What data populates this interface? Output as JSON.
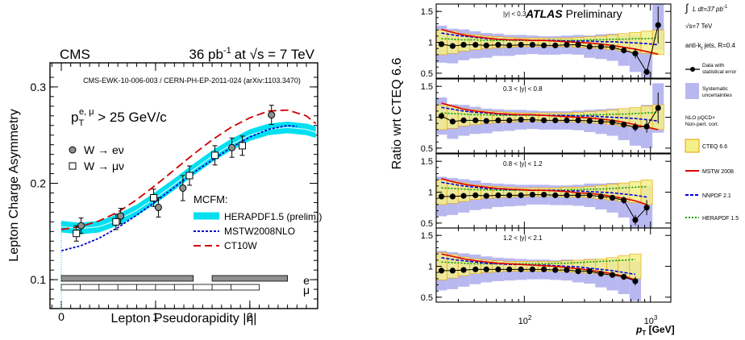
{
  "chart_data": [
    {
      "type": "line",
      "experiment": "CMS",
      "lumi_label": "36 pb",
      "lumi_sup": "-1",
      "energy_label": "at  √s = 7 TeV",
      "reference": "CMS-EWK-10-006-003 / CERN-PH-EP-2011-024 (arXiv:1103.3470)",
      "cut_main": "p",
      "cut_sub": "T",
      "cut_sup": "e, μ",
      "cut_rest": " > 25 GeV/c",
      "xlabel": "Lepton Pseudorapidity    |η|",
      "ylabel": "Lepton Charge Asymmetry",
      "xlim": [
        -0.12,
        2.72
      ],
      "ylim": [
        0.07,
        0.325
      ],
      "xticks": [
        "0",
        "1",
        "2"
      ],
      "yticks": [
        "0.1",
        "0.2",
        "0.3"
      ],
      "xtick_values": [
        0,
        1,
        2
      ],
      "ytick_values": [
        0.1,
        0.2,
        0.3
      ],
      "legend_title": "MCFM:",
      "series": [
        {
          "name": "W → eν",
          "marker": "circle",
          "color": "#909090",
          "x": [
            0.21,
            0.63,
            1.03,
            1.29,
            1.81,
            2.23
          ],
          "y": [
            0.156,
            0.166,
            0.175,
            0.195,
            0.237,
            0.271
          ],
          "err": [
            0.008,
            0.008,
            0.01,
            0.013,
            0.01,
            0.01
          ]
        },
        {
          "name": "W → μν",
          "marker": "square",
          "color": "#ffffff",
          "x": [
            0.16,
            0.58,
            0.98,
            1.36,
            1.63,
            1.92
          ],
          "y": [
            0.148,
            0.16,
            0.185,
            0.208,
            0.229,
            0.239
          ],
          "err": [
            0.008,
            0.008,
            0.009,
            0.01,
            0.01,
            0.01
          ]
        },
        {
          "name": "HERAPDF1.5 (prelim.)",
          "style": "band",
          "color": "#00e0f0",
          "x": [
            0,
            0.2,
            0.4,
            0.6,
            0.8,
            1.0,
            1.2,
            1.4,
            1.6,
            1.8,
            2.0,
            2.2,
            2.4,
            2.6,
            2.7
          ],
          "y": [
            0.155,
            0.153,
            0.155,
            0.162,
            0.172,
            0.185,
            0.199,
            0.214,
            0.228,
            0.24,
            0.25,
            0.256,
            0.258,
            0.256,
            0.253
          ],
          "halfwidth": 0.006
        },
        {
          "name": "MSTW2008NLO",
          "style": "dotted",
          "color": "#0000cc",
          "x": [
            0,
            0.2,
            0.4,
            0.6,
            0.8,
            1.0,
            1.2,
            1.4,
            1.6,
            1.8,
            2.0,
            2.2,
            2.4,
            2.5
          ],
          "y": [
            0.13,
            0.135,
            0.143,
            0.154,
            0.167,
            0.181,
            0.196,
            0.211,
            0.224,
            0.237,
            0.248,
            0.256,
            0.26,
            0.259
          ]
        },
        {
          "name": "CT10W",
          "style": "dashed",
          "color": "#d00000",
          "x": [
            0,
            0.2,
            0.4,
            0.6,
            0.8,
            1.0,
            1.2,
            1.4,
            1.6,
            1.8,
            2.0,
            2.2,
            2.4,
            2.6,
            2.7
          ],
          "y": [
            0.152,
            0.155,
            0.161,
            0.17,
            0.183,
            0.198,
            0.214,
            0.23,
            0.245,
            0.258,
            0.268,
            0.275,
            0.276,
            0.27,
            0.262
          ]
        }
      ],
      "bins": {
        "e_label": "e",
        "mu_label": "μ",
        "e_segments": [
          [
            0,
            1.4
          ],
          [
            1.6,
            2.4
          ]
        ],
        "mu_edges": [
          0,
          0.2,
          0.4,
          0.6,
          0.8,
          1.0,
          1.2,
          1.4,
          1.6,
          1.8,
          2.1
        ]
      }
    },
    {
      "type": "line",
      "experiment": "ATLAS",
      "experiment_suffix": "Preliminary",
      "ylabel": "Ratio wrt CTEQ 6.6",
      "xlabel_main": "p",
      "xlabel_sub": "T",
      "xlabel_unit": " [GeV]",
      "xscale": "log",
      "xlim": [
        20,
        1450
      ],
      "ylim": [
        0.42,
        1.62
      ],
      "xtick_labels": [
        "10",
        "10"
      ],
      "xtick_sups": [
        "2",
        "3"
      ],
      "xtick_values": [
        100,
        1000
      ],
      "yticks": [
        "0.5",
        "1",
        "1.5"
      ],
      "ytick_values": [
        0.5,
        1,
        1.5
      ],
      "legend": {
        "lumi_label": "L dt=37 pb",
        "lumi_sup": "-1",
        "energy": "√s=7 TeV",
        "jets": "anti-k",
        "jets_sub": "t",
        "jets_rest": "   jets,  R=0.4",
        "data_line1": "Data with",
        "data_line2": "statistical error",
        "syst_line1": "Systematic",
        "syst_line2": "uncertainties",
        "nlo_line1": "NLO pQCD×",
        "nlo_line2": "Non-pert. corr.",
        "cteq": "CTEQ 6.6",
        "mstw": "MSTW 2008",
        "nnpdf": "NNPDF 2.1",
        "herapdf": "HERAPDF 1.5"
      },
      "colors": {
        "syst": "#b8b8f0",
        "cteq": "#f4f08a",
        "cteq_edge": "#e8a000",
        "mstw": "#e00000",
        "nnpdf": "#0000dd",
        "herapdf": "#00a000"
      },
      "panels": [
        {
          "label": "|y| < 0.3",
          "x": [
            22,
            27,
            33,
            41,
            50,
            62,
            76,
            94,
            116,
            143,
            176,
            217,
            267,
            329,
            405,
            499,
            615,
            758,
            934,
            1150
          ],
          "data": [
            0.97,
            0.94,
            0.96,
            0.96,
            0.95,
            0.96,
            0.95,
            0.96,
            0.96,
            0.95,
            0.95,
            0.96,
            0.96,
            0.93,
            0.93,
            0.92,
            0.87,
            0.82,
            0.52,
            1.28
          ],
          "data_err": [
            0.01,
            0.01,
            0.01,
            0.01,
            0.01,
            0.01,
            0.01,
            0.01,
            0.01,
            0.01,
            0.01,
            0.01,
            0.01,
            0.015,
            0.02,
            0.03,
            0.05,
            0.08,
            0.05,
            0.3
          ],
          "syst": [
            0.3,
            0.28,
            0.25,
            0.22,
            0.2,
            0.18,
            0.17,
            0.16,
            0.15,
            0.15,
            0.15,
            0.15,
            0.16,
            0.18,
            0.2,
            0.22,
            0.25,
            0.3,
            0.35,
            0.4
          ],
          "cteq": [
            0.2,
            0.18,
            0.14,
            0.12,
            0.1,
            0.09,
            0.08,
            0.07,
            0.07,
            0.07,
            0.07,
            0.07,
            0.08,
            0.09,
            0.1,
            0.12,
            0.14,
            0.16,
            0.18,
            0.2
          ],
          "mstw": [
            1.21,
            1.16,
            1.12,
            1.09,
            1.07,
            1.05,
            1.04,
            1.04,
            1.03,
            1.03,
            1.02,
            1.01,
            1.0,
            0.99,
            0.97,
            0.95,
            0.92,
            0.89,
            0.85,
            0.81
          ],
          "nnpdf": [
            1.15,
            1.12,
            1.1,
            1.08,
            1.06,
            1.05,
            1.04,
            1.04,
            1.03,
            1.03,
            1.03,
            1.02,
            1.02,
            1.02,
            1.01,
            1.01,
            1.0,
            0.99,
            0.98,
            0.96
          ],
          "herapdf": [
            1.06,
            1.05,
            1.04,
            1.04,
            1.03,
            1.03,
            1.03,
            1.03,
            1.03,
            1.03,
            1.03,
            1.03,
            1.03,
            1.04,
            1.04,
            1.05,
            1.05,
            1.06,
            1.06,
            1.07
          ]
        },
        {
          "label": "0.3 < |y| < 0.8",
          "x": [
            22,
            27,
            33,
            41,
            50,
            62,
            76,
            94,
            116,
            143,
            176,
            217,
            267,
            329,
            405,
            499,
            615,
            758,
            934,
            1150
          ],
          "data": [
            1.02,
            0.93,
            0.95,
            0.95,
            0.94,
            0.95,
            0.95,
            0.96,
            0.96,
            0.95,
            0.95,
            0.95,
            0.95,
            0.94,
            0.93,
            0.92,
            0.88,
            0.84,
            0.85,
            1.15
          ],
          "data_err": [
            0.01,
            0.01,
            0.01,
            0.01,
            0.01,
            0.01,
            0.01,
            0.01,
            0.01,
            0.01,
            0.01,
            0.01,
            0.01,
            0.015,
            0.02,
            0.03,
            0.05,
            0.07,
            0.1,
            0.25
          ],
          "syst": [
            0.3,
            0.28,
            0.25,
            0.22,
            0.2,
            0.18,
            0.17,
            0.16,
            0.15,
            0.15,
            0.15,
            0.15,
            0.16,
            0.18,
            0.2,
            0.22,
            0.25,
            0.3,
            0.35,
            0.4
          ],
          "cteq": [
            0.2,
            0.18,
            0.14,
            0.12,
            0.1,
            0.09,
            0.08,
            0.07,
            0.07,
            0.07,
            0.07,
            0.07,
            0.08,
            0.09,
            0.1,
            0.12,
            0.14,
            0.16,
            0.18,
            0.2
          ],
          "mstw": [
            1.23,
            1.18,
            1.13,
            1.1,
            1.08,
            1.06,
            1.05,
            1.04,
            1.04,
            1.03,
            1.02,
            1.01,
            1.0,
            0.99,
            0.97,
            0.95,
            0.92,
            0.88,
            0.84,
            0.8
          ],
          "nnpdf": [
            1.16,
            1.13,
            1.1,
            1.08,
            1.07,
            1.05,
            1.04,
            1.04,
            1.04,
            1.03,
            1.03,
            1.03,
            1.02,
            1.02,
            1.01,
            1.0,
            0.99,
            0.98,
            0.96,
            0.94
          ],
          "herapdf": [
            1.07,
            1.06,
            1.05,
            1.04,
            1.04,
            1.03,
            1.03,
            1.03,
            1.03,
            1.03,
            1.03,
            1.03,
            1.03,
            1.04,
            1.04,
            1.05,
            1.05,
            1.06,
            1.07,
            1.08
          ]
        },
        {
          "label": "0.8 < |y| < 1.2",
          "x": [
            22,
            27,
            33,
            41,
            50,
            62,
            76,
            94,
            116,
            143,
            176,
            217,
            267,
            329,
            405,
            499,
            615,
            758,
            934
          ],
          "data": [
            0.93,
            0.93,
            0.94,
            0.95,
            0.94,
            0.95,
            0.95,
            0.95,
            0.96,
            0.96,
            0.95,
            0.95,
            0.95,
            0.95,
            0.93,
            0.91,
            0.87,
            0.55,
            0.75
          ],
          "data_err": [
            0.01,
            0.01,
            0.01,
            0.01,
            0.01,
            0.01,
            0.01,
            0.01,
            0.01,
            0.01,
            0.01,
            0.01,
            0.015,
            0.02,
            0.03,
            0.04,
            0.06,
            0.08,
            0.12
          ],
          "syst": [
            0.32,
            0.3,
            0.27,
            0.24,
            0.21,
            0.19,
            0.18,
            0.17,
            0.16,
            0.16,
            0.16,
            0.16,
            0.17,
            0.19,
            0.21,
            0.24,
            0.28,
            0.32,
            0.36
          ],
          "cteq": [
            0.2,
            0.18,
            0.15,
            0.12,
            0.1,
            0.09,
            0.08,
            0.07,
            0.07,
            0.07,
            0.07,
            0.08,
            0.08,
            0.09,
            0.11,
            0.13,
            0.15,
            0.17,
            0.2
          ],
          "mstw": [
            1.22,
            1.17,
            1.13,
            1.1,
            1.08,
            1.06,
            1.05,
            1.04,
            1.03,
            1.03,
            1.02,
            1.01,
            0.99,
            0.98,
            0.96,
            0.93,
            0.9,
            0.86,
            0.8
          ],
          "nnpdf": [
            1.16,
            1.13,
            1.1,
            1.08,
            1.06,
            1.05,
            1.04,
            1.04,
            1.03,
            1.03,
            1.03,
            1.02,
            1.02,
            1.01,
            1.0,
            0.99,
            0.97,
            0.95,
            0.92
          ],
          "herapdf": [
            1.07,
            1.06,
            1.05,
            1.04,
            1.04,
            1.03,
            1.03,
            1.03,
            1.03,
            1.03,
            1.03,
            1.04,
            1.04,
            1.05,
            1.05,
            1.06,
            1.07,
            1.08,
            1.09
          ]
        },
        {
          "label": "1.2 < |y| < 2.1",
          "x": [
            22,
            27,
            33,
            41,
            50,
            62,
            76,
            94,
            116,
            143,
            176,
            217,
            267,
            329,
            405,
            499,
            615,
            758
          ],
          "data": [
            0.93,
            0.93,
            0.94,
            0.95,
            0.95,
            0.95,
            0.95,
            0.95,
            0.95,
            0.95,
            0.94,
            0.94,
            0.92,
            0.92,
            0.88,
            0.86,
            0.83,
            0.76
          ],
          "data_err": [
            0.01,
            0.01,
            0.01,
            0.01,
            0.01,
            0.01,
            0.01,
            0.01,
            0.01,
            0.01,
            0.01,
            0.015,
            0.02,
            0.02,
            0.03,
            0.04,
            0.05,
            0.07
          ],
          "syst": [
            0.32,
            0.3,
            0.27,
            0.24,
            0.21,
            0.19,
            0.18,
            0.17,
            0.16,
            0.16,
            0.16,
            0.17,
            0.18,
            0.2,
            0.22,
            0.25,
            0.28,
            0.32
          ],
          "cteq": [
            0.22,
            0.19,
            0.15,
            0.12,
            0.1,
            0.09,
            0.08,
            0.08,
            0.08,
            0.08,
            0.08,
            0.09,
            0.1,
            0.11,
            0.12,
            0.14,
            0.17,
            0.2
          ],
          "mstw": [
            1.2,
            1.16,
            1.12,
            1.09,
            1.07,
            1.05,
            1.04,
            1.03,
            1.02,
            1.01,
            1.0,
            0.98,
            0.96,
            0.94,
            0.91,
            0.88,
            0.84,
            0.78
          ],
          "nnpdf": [
            1.14,
            1.11,
            1.09,
            1.07,
            1.05,
            1.04,
            1.03,
            1.03,
            1.02,
            1.02,
            1.01,
            1.0,
            0.99,
            0.97,
            0.95,
            0.93,
            0.9,
            0.87
          ],
          "herapdf": [
            1.07,
            1.06,
            1.05,
            1.04,
            1.04,
            1.04,
            1.04,
            1.04,
            1.04,
            1.04,
            1.05,
            1.05,
            1.06,
            1.07,
            1.08,
            1.09,
            1.1,
            1.11
          ]
        }
      ]
    }
  ]
}
